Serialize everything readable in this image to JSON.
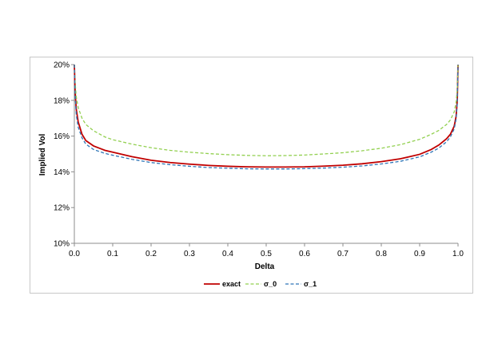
{
  "chart_data": {
    "type": "line",
    "xlabel": "Delta",
    "ylabel": "Implied Vol",
    "xlim": [
      0.0,
      1.0
    ],
    "ylim": [
      0.1,
      0.2
    ],
    "x_ticks": [
      "0.0",
      "0.1",
      "0.2",
      "0.3",
      "0.4",
      "0.5",
      "0.6",
      "0.7",
      "0.8",
      "0.9",
      "1.0"
    ],
    "y_ticks": [
      "10%",
      "12%",
      "14%",
      "16%",
      "18%",
      "20%"
    ],
    "grid": false,
    "legend_position": "bottom",
    "series": [
      {
        "name": "exact",
        "color": "#c00000",
        "style": "solid",
        "x": [
          0.0,
          0.002,
          0.005,
          0.01,
          0.02,
          0.03,
          0.05,
          0.08,
          0.1,
          0.15,
          0.2,
          0.25,
          0.3,
          0.35,
          0.4,
          0.45,
          0.5,
          0.55,
          0.6,
          0.65,
          0.7,
          0.75,
          0.8,
          0.85,
          0.9,
          0.93,
          0.95,
          0.97,
          0.98,
          0.99,
          0.995,
          0.998,
          1.0
        ],
        "y": [
          0.2,
          0.185,
          0.175,
          0.168,
          0.161,
          0.1575,
          0.1545,
          0.152,
          0.151,
          0.1485,
          0.1465,
          0.1452,
          0.1443,
          0.1436,
          0.1431,
          0.1428,
          0.1427,
          0.1427,
          0.1428,
          0.1432,
          0.1437,
          0.1445,
          0.1457,
          0.1473,
          0.1498,
          0.1525,
          0.155,
          0.1585,
          0.161,
          0.1655,
          0.171,
          0.18,
          0.2
        ]
      },
      {
        "name": "σ_0",
        "color": "#92d050",
        "style": "dashed",
        "x": [
          0.0,
          0.002,
          0.005,
          0.01,
          0.02,
          0.03,
          0.05,
          0.08,
          0.1,
          0.15,
          0.2,
          0.25,
          0.3,
          0.35,
          0.4,
          0.45,
          0.5,
          0.55,
          0.6,
          0.65,
          0.7,
          0.75,
          0.8,
          0.85,
          0.9,
          0.93,
          0.95,
          0.97,
          0.98,
          0.99,
          0.995,
          0.998,
          1.0
        ],
        "y": [
          0.2,
          0.19,
          0.182,
          0.176,
          0.17,
          0.1665,
          0.163,
          0.1595,
          0.158,
          0.1555,
          0.1535,
          0.152,
          0.151,
          0.1502,
          0.1496,
          0.1492,
          0.149,
          0.1491,
          0.1494,
          0.15,
          0.1507,
          0.1518,
          0.1532,
          0.1552,
          0.1582,
          0.161,
          0.1632,
          0.1665,
          0.169,
          0.1735,
          0.179,
          0.186,
          0.2
        ]
      },
      {
        "name": "σ_1",
        "color": "#2e75b6",
        "style": "dashed",
        "x": [
          0.0,
          0.002,
          0.005,
          0.01,
          0.02,
          0.03,
          0.05,
          0.08,
          0.1,
          0.15,
          0.2,
          0.25,
          0.3,
          0.35,
          0.4,
          0.45,
          0.5,
          0.55,
          0.6,
          0.65,
          0.7,
          0.75,
          0.8,
          0.85,
          0.9,
          0.93,
          0.95,
          0.97,
          0.98,
          0.99,
          0.995,
          0.998,
          1.0
        ],
        "y": [
          0.2,
          0.183,
          0.172,
          0.165,
          0.159,
          0.1555,
          0.1525,
          0.1503,
          0.1493,
          0.147,
          0.1452,
          0.144,
          0.1431,
          0.1424,
          0.142,
          0.1417,
          0.1416,
          0.1416,
          0.1418,
          0.1421,
          0.1426,
          0.1433,
          0.1444,
          0.1459,
          0.1484,
          0.151,
          0.1533,
          0.1568,
          0.1595,
          0.164,
          0.1695,
          0.178,
          0.2
        ]
      }
    ]
  }
}
